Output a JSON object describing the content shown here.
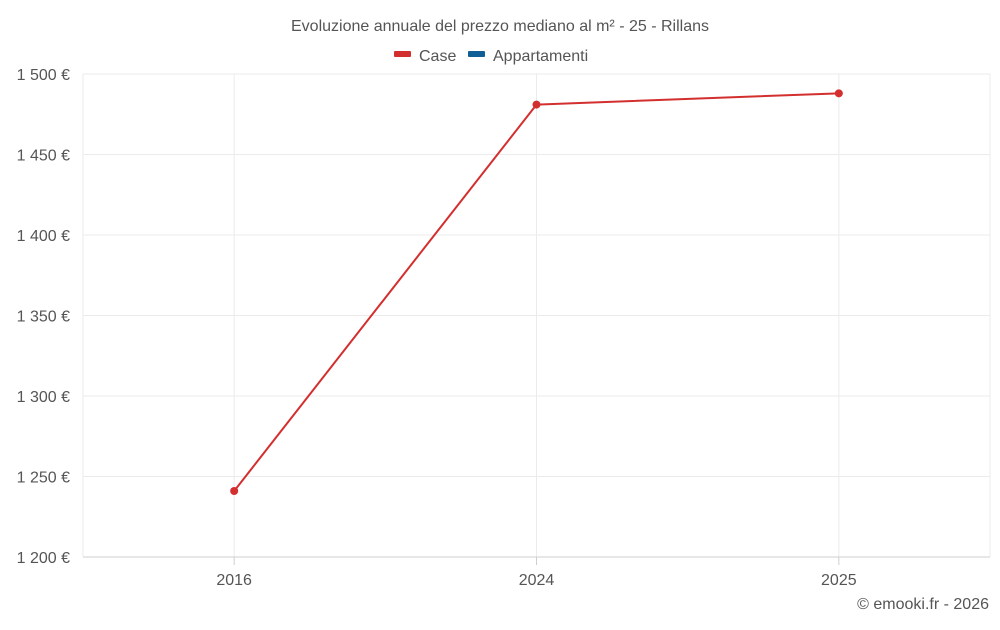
{
  "chart_data": {
    "type": "line",
    "title": "Evoluzione annuale del prezzo mediano al m² - 25 - Rillans",
    "categories": [
      "2016",
      "2024",
      "2025"
    ],
    "series": [
      {
        "name": "Case",
        "color": "#d32f2f",
        "values": [
          1241,
          1481,
          1488
        ]
      },
      {
        "name": "Appartamenti",
        "color": "#0f5f96",
        "values": [
          null,
          null,
          null
        ]
      }
    ],
    "ylim": [
      1200,
      1500
    ],
    "yticks": [
      1200,
      1250,
      1300,
      1350,
      1400,
      1450,
      1500
    ],
    "ytick_labels": [
      "1 200 €",
      "1 250 €",
      "1 300 €",
      "1 350 €",
      "1 400 €",
      "1 450 €",
      "1 500 €"
    ],
    "xlabel": "",
    "ylabel": "",
    "grid": true,
    "legend_position": "top-center"
  },
  "credit": "© emooki.fr - 2026"
}
